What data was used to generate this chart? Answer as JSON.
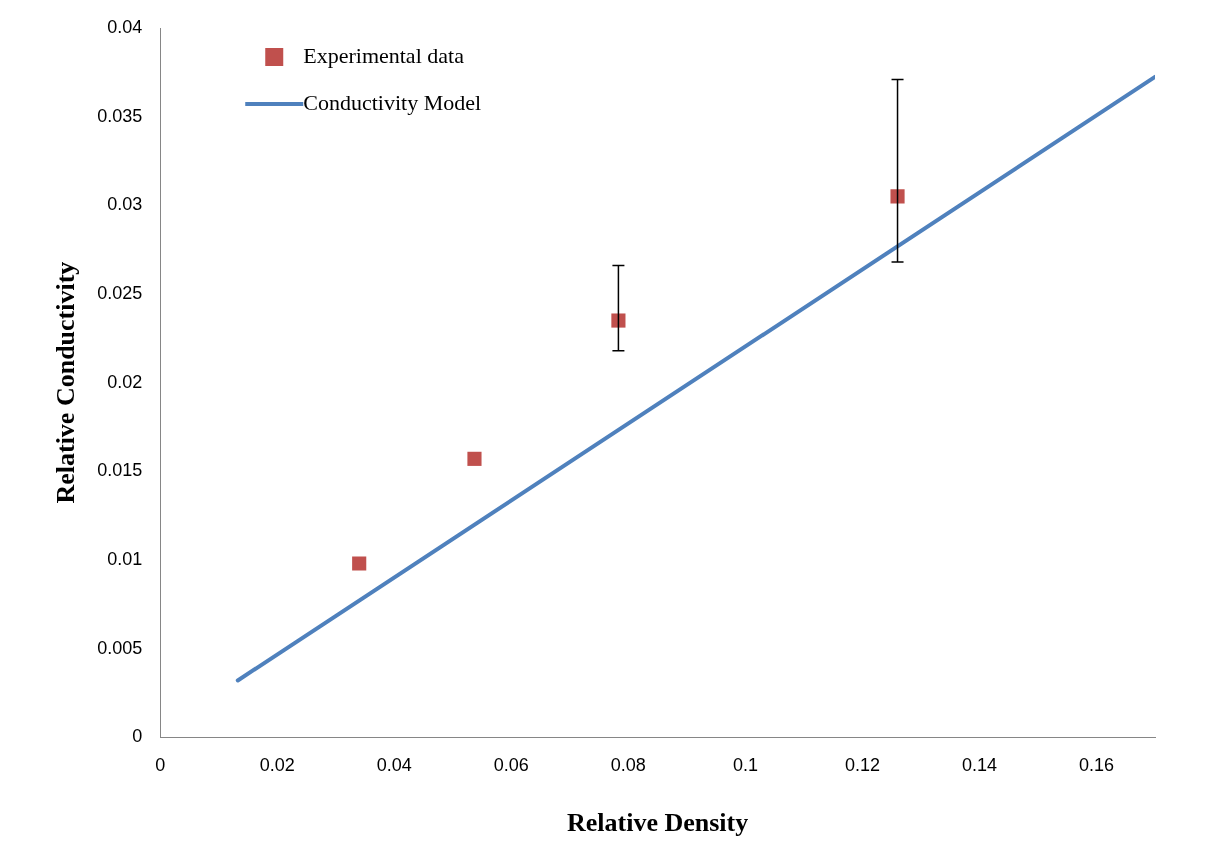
{
  "chart_data": {
    "type": "scatter",
    "xlabel": "Relative Density",
    "ylabel": "Relative Conductivity",
    "xlim": [
      0,
      0.17
    ],
    "xticks": [
      0,
      0.02,
      0.04,
      0.06,
      0.08,
      0.1,
      0.12,
      0.14,
      0.16
    ],
    "ylim": [
      0,
      0.04
    ],
    "yticks": [
      0,
      0.005,
      0.01,
      0.015,
      0.02,
      0.025,
      0.03,
      0.035,
      0.04
    ],
    "grid": false,
    "legend": "top left",
    "series": [
      {
        "name": "Experimental data",
        "marker": "square",
        "color": "#c0504d",
        "x": [
          0.034,
          0.0537,
          0.0783,
          0.126
        ],
        "values": [
          0.0098,
          0.0157,
          0.0235,
          0.0305
        ],
        "errors": [
          null,
          null,
          [
            0.0218,
            0.0266
          ],
          [
            0.0268,
            0.0371
          ]
        ]
      },
      {
        "name": "Conductivity Model",
        "type": "line",
        "marker": "none",
        "line_style": "solid",
        "color": "#4f81bd",
        "x": [
          0.01325,
          0.17
        ],
        "values": [
          0.0032,
          0.03724
        ]
      }
    ]
  }
}
